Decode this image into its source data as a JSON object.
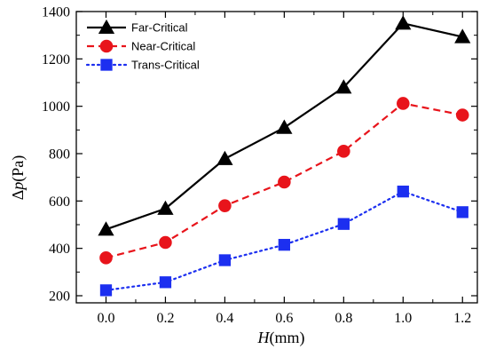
{
  "chart_data": {
    "type": "line",
    "title": "",
    "x": [
      0.0,
      0.2,
      0.4,
      0.6,
      0.8,
      1.0,
      1.2
    ],
    "series": [
      {
        "name": "Far-Critical",
        "values": [
          480,
          568,
          778,
          910,
          1080,
          1350,
          1293
        ],
        "color": "#000000",
        "marker": "triangle",
        "line": "solid"
      },
      {
        "name": "Near-Critical",
        "values": [
          360,
          425,
          580,
          680,
          810,
          1012,
          963
        ],
        "color": "#e8141b",
        "marker": "circle",
        "line": "dashed"
      },
      {
        "name": "Trans-Critical",
        "values": [
          223,
          257,
          350,
          415,
          503,
          640,
          553
        ],
        "color": "#1c2ff0",
        "marker": "square",
        "line": "dotted"
      }
    ],
    "xlabel": {
      "italic": "H",
      "unit": "(mm)"
    },
    "ylabel": {
      "prefix": "Δ",
      "italic": "p",
      "unit": "(Pa)"
    },
    "xlim": [
      -0.1,
      1.25
    ],
    "ylim": [
      170,
      1400
    ],
    "xticks": [
      "0.0",
      "0.2",
      "0.4",
      "0.6",
      "0.8",
      "1.0",
      "1.2"
    ],
    "yticks": [
      "200",
      "400",
      "600",
      "800",
      "1000",
      "1200",
      "1400"
    ],
    "grid": false,
    "legend_position": "top-left"
  }
}
